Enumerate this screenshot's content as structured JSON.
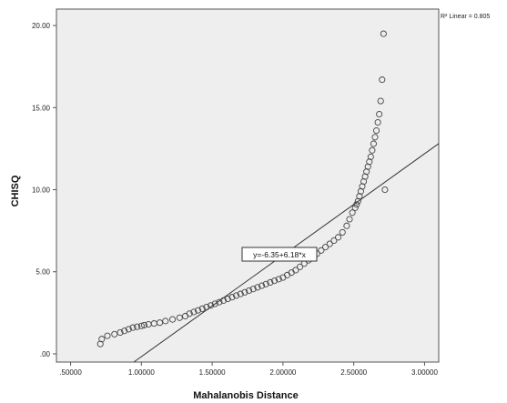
{
  "chart_data": {
    "type": "scatter",
    "xlabel": "Mahalanobis Distance",
    "ylabel": "CHISQ",
    "xlim": [
      0.4,
      3.1
    ],
    "ylim": [
      -0.5,
      21.0
    ],
    "xticks": [
      0.5,
      1.0,
      1.5,
      2.0,
      2.5,
      3.0
    ],
    "xtick_labels": [
      ".50000",
      "1.00000",
      "1.50000",
      "2.00000",
      "2.50000",
      "3.00000"
    ],
    "yticks": [
      0,
      5,
      10,
      15,
      20
    ],
    "ytick_labels": [
      ".00",
      "5.00",
      "10.00",
      "15.00",
      "20.00"
    ],
    "grid": false,
    "background_color": "#eeeeee",
    "marker_color": "#444444",
    "line_color": "#333333",
    "fit_line": {
      "intercept": -6.35,
      "slope": 6.18,
      "label": "y=-6.35+6.18*x"
    },
    "r2_label": "R² Linear = 0.805",
    "x": [
      0.71,
      0.72,
      0.76,
      0.81,
      0.85,
      0.88,
      0.91,
      0.94,
      0.97,
      1.0,
      1.02,
      1.05,
      1.09,
      1.13,
      1.17,
      1.22,
      1.27,
      1.31,
      1.34,
      1.37,
      1.4,
      1.43,
      1.46,
      1.49,
      1.52,
      1.55,
      1.58,
      1.61,
      1.64,
      1.67,
      1.7,
      1.73,
      1.76,
      1.79,
      1.82,
      1.85,
      1.88,
      1.91,
      1.94,
      1.97,
      2.0,
      2.03,
      2.06,
      2.09,
      2.12,
      2.15,
      2.18,
      2.21,
      2.24,
      2.27,
      2.3,
      2.33,
      2.36,
      2.39,
      2.42,
      2.45,
      2.47,
      2.49,
      2.51,
      2.52,
      2.53,
      2.54,
      2.55,
      2.56,
      2.57,
      2.58,
      2.59,
      2.6,
      2.61,
      2.62,
      2.63,
      2.64,
      2.65,
      2.66,
      2.67,
      2.68,
      2.69,
      2.7,
      2.71,
      2.72
    ],
    "y": [
      0.6,
      0.9,
      1.1,
      1.2,
      1.3,
      1.4,
      1.5,
      1.6,
      1.65,
      1.7,
      1.75,
      1.8,
      1.85,
      1.9,
      2.0,
      2.1,
      2.2,
      2.3,
      2.45,
      2.55,
      2.65,
      2.75,
      2.85,
      2.95,
      3.05,
      3.15,
      3.25,
      3.35,
      3.45,
      3.55,
      3.65,
      3.75,
      3.85,
      3.95,
      4.05,
      4.15,
      4.25,
      4.35,
      4.45,
      4.55,
      4.65,
      4.8,
      4.95,
      5.1,
      5.3,
      5.5,
      5.7,
      5.9,
      6.1,
      6.3,
      6.5,
      6.7,
      6.9,
      7.1,
      7.4,
      7.8,
      8.2,
      8.6,
      8.9,
      9.1,
      9.3,
      9.6,
      9.9,
      10.2,
      10.5,
      10.8,
      11.1,
      11.4,
      11.7,
      12.0,
      12.4,
      12.8,
      13.2,
      13.6,
      14.1,
      14.6,
      15.4,
      16.7,
      19.5,
      10.0
    ]
  }
}
